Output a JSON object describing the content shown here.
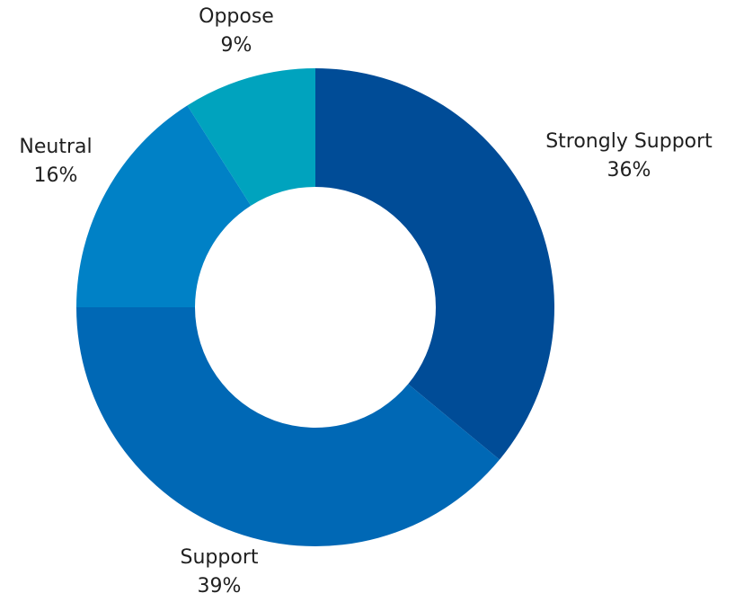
{
  "chart_data": {
    "type": "pie",
    "variant": "donut",
    "title": "",
    "slices": [
      {
        "label": "Strongly Support",
        "pct_label": "36%",
        "value": 36,
        "color": "#004C97"
      },
      {
        "label": "Support",
        "pct_label": "39%",
        "value": 39,
        "color": "#0068B5"
      },
      {
        "label": "Neutral",
        "pct_label": "16%",
        "value": 16,
        "color": "#0081C6"
      },
      {
        "label": "Oppose",
        "pct_label": "9%",
        "value": 9,
        "color": "#00A3BE"
      }
    ],
    "start_angle": "12 o'clock",
    "direction": "clockwise",
    "labels": "outside each slice"
  }
}
